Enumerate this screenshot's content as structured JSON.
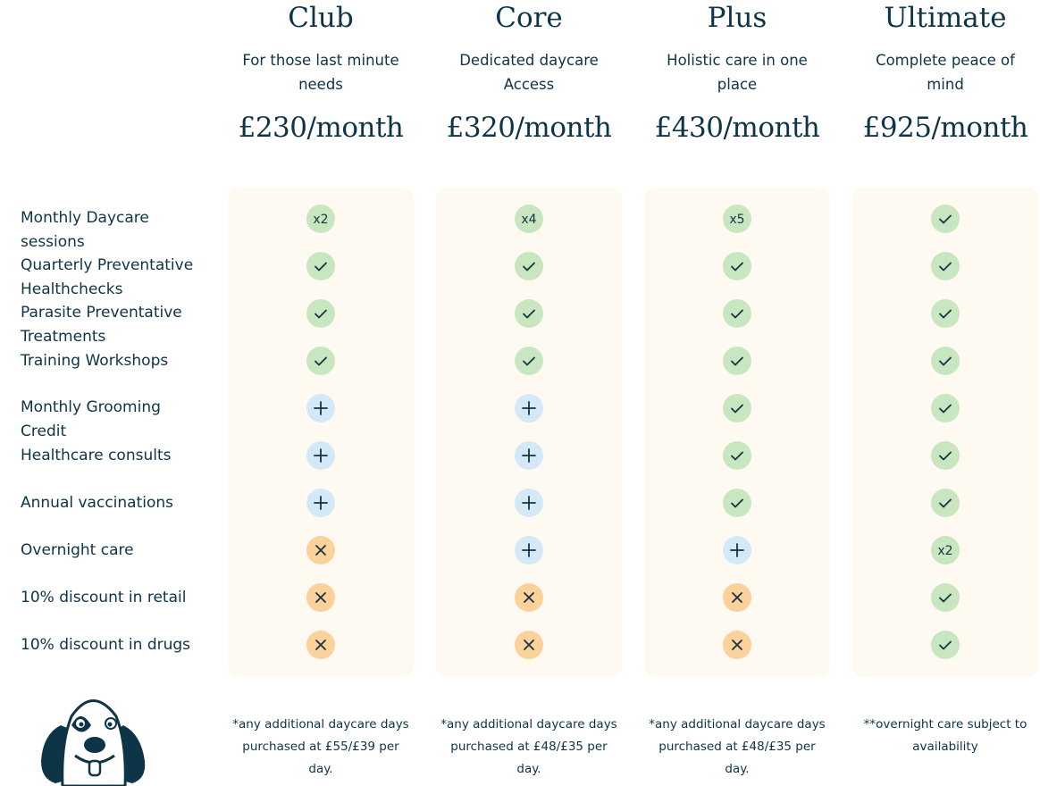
{
  "plans": [
    {
      "name": "Club",
      "tagline": [
        "For those last minute",
        "needs"
      ],
      "price": "£230/month",
      "note": [
        "*any additional daycare days",
        "purchased at £55/£39 per",
        "day."
      ]
    },
    {
      "name": "Core",
      "tagline": [
        "Dedicated daycare",
        "Access"
      ],
      "price": "£320/month",
      "note": [
        "*any additional daycare days",
        "purchased at £48/£35 per",
        "day."
      ]
    },
    {
      "name": "Plus",
      "tagline": [
        "Holistic care in one",
        "place"
      ],
      "price": "£430/month",
      "note": [
        "*any additional daycare days",
        "purchased at £48/£35 per",
        "day."
      ]
    },
    {
      "name": "Ultimate",
      "tagline": [
        "Complete peace of",
        "mind"
      ],
      "price": "£925/month",
      "note": [
        "**overnight care subject  to",
        "availability"
      ]
    }
  ],
  "features": [
    {
      "label": [
        "Monthly Daycare",
        "sessions"
      ],
      "cells": [
        {
          "text": "x2"
        },
        {
          "text": "x4"
        },
        {
          "text": "x5"
        },
        {
          "icon": "check"
        }
      ]
    },
    {
      "label": [
        "Quarterly Preventative",
        "Healthchecks"
      ],
      "cells": [
        {
          "icon": "check"
        },
        {
          "icon": "check"
        },
        {
          "icon": "check"
        },
        {
          "icon": "check"
        }
      ]
    },
    {
      "label": [
        "Parasite Preventative",
        "Treatments"
      ],
      "cells": [
        {
          "icon": "check"
        },
        {
          "icon": "check"
        },
        {
          "icon": "check"
        },
        {
          "icon": "check"
        }
      ]
    },
    {
      "label": [
        "Training Workshops"
      ],
      "cells": [
        {
          "icon": "check"
        },
        {
          "icon": "check"
        },
        {
          "icon": "check"
        },
        {
          "icon": "check"
        }
      ]
    },
    {
      "label": [
        "Monthly Grooming",
        "Credit"
      ],
      "cells": [
        {
          "icon": "plus"
        },
        {
          "icon": "plus"
        },
        {
          "icon": "check"
        },
        {
          "icon": "check"
        }
      ]
    },
    {
      "label": [
        "Healthcare consults"
      ],
      "cells": [
        {
          "icon": "plus"
        },
        {
          "icon": "plus"
        },
        {
          "icon": "check"
        },
        {
          "icon": "check"
        }
      ]
    },
    {
      "label": [
        "Annual vaccinations"
      ],
      "cells": [
        {
          "icon": "plus"
        },
        {
          "icon": "plus"
        },
        {
          "icon": "check"
        },
        {
          "icon": "check"
        }
      ]
    },
    {
      "label": [
        "Overnight care"
      ],
      "cells": [
        {
          "icon": "cross"
        },
        {
          "icon": "plus"
        },
        {
          "icon": "plus"
        },
        {
          "text": "x2"
        }
      ]
    },
    {
      "label": [
        "10% discount in retail"
      ],
      "cells": [
        {
          "icon": "cross"
        },
        {
          "icon": "cross"
        },
        {
          "icon": "cross"
        },
        {
          "icon": "check"
        }
      ]
    },
    {
      "label": [
        "10% discount in drugs"
      ],
      "cells": [
        {
          "icon": "cross"
        },
        {
          "icon": "cross"
        },
        {
          "icon": "cross"
        },
        {
          "icon": "check"
        }
      ]
    }
  ]
}
